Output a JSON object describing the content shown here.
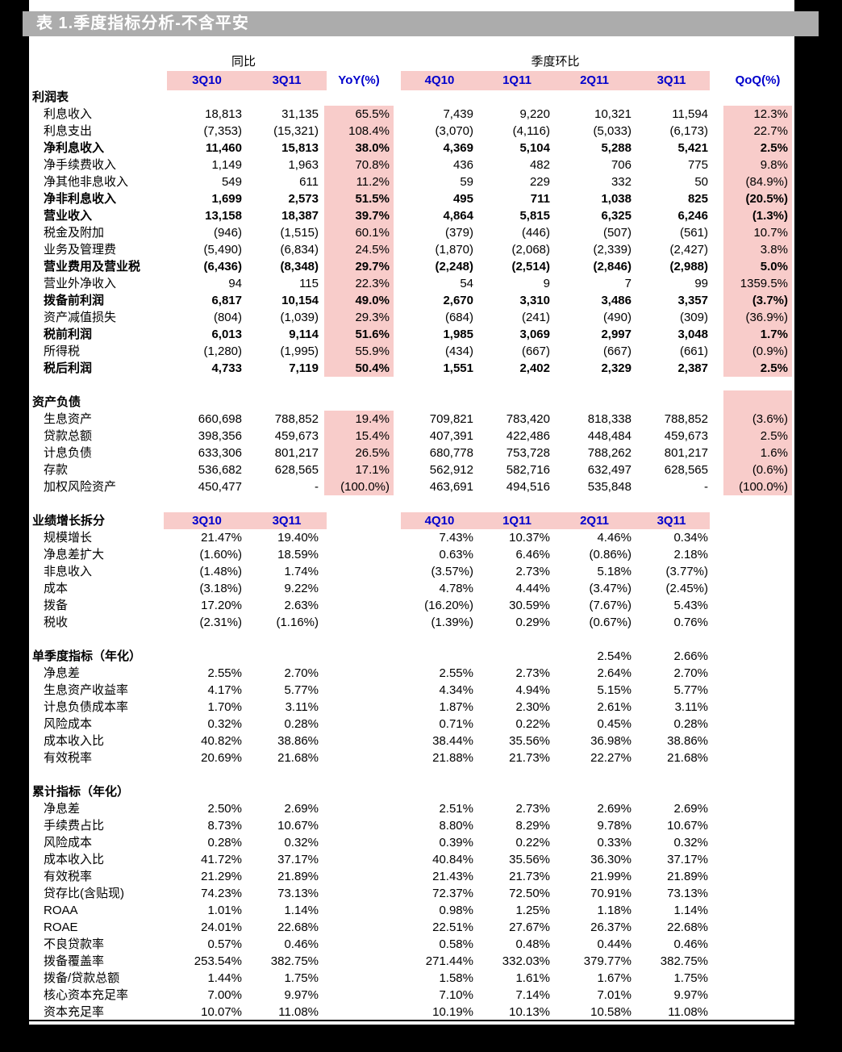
{
  "title": "表 1.季度指标分析-不含平安",
  "colors": {
    "highlight_pink": "#f8ccca",
    "header_blue": "#0000cc",
    "title_bar_gray": "#acacac",
    "page_white": "#ffffff",
    "background_black": "#000000"
  },
  "header": {
    "yoy_group_label": "同比",
    "qoq_group_label": "季度环比",
    "cols_yoy": [
      "3Q10",
      "3Q11"
    ],
    "yoy_label": "YoY(%)",
    "cols_qoq": [
      "4Q10",
      "1Q11",
      "2Q11",
      "3Q11"
    ],
    "qoq_label": "QoQ(%)"
  },
  "growth_header": {
    "cols_left": [
      "3Q10",
      "3Q11"
    ],
    "cols_right": [
      "4Q10",
      "1Q11",
      "2Q11",
      "3Q11"
    ]
  },
  "table": {
    "rows": [
      {
        "t": "section",
        "label": "利润表"
      },
      {
        "t": "item",
        "label": "利息收入",
        "v": [
          "18,813",
          "31,135",
          "65.5%",
          "7,439",
          "9,220",
          "10,321",
          "11,594",
          "12.3%"
        ]
      },
      {
        "t": "item",
        "label": "利息支出",
        "v": [
          "(7,353)",
          "(15,321)",
          "108.4%",
          "(3,070)",
          "(4,116)",
          "(5,033)",
          "(6,173)",
          "22.7%"
        ]
      },
      {
        "t": "item",
        "b": true,
        "label": "净利息收入",
        "v": [
          "11,460",
          "15,813",
          "38.0%",
          "4,369",
          "5,104",
          "5,288",
          "5,421",
          "2.5%"
        ]
      },
      {
        "t": "item",
        "label": "净手续费收入",
        "v": [
          "1,149",
          "1,963",
          "70.8%",
          "436",
          "482",
          "706",
          "775",
          "9.8%"
        ]
      },
      {
        "t": "item",
        "label": "净其他非息收入",
        "v": [
          "549",
          "611",
          "11.2%",
          "59",
          "229",
          "332",
          "50",
          "(84.9%)"
        ]
      },
      {
        "t": "item",
        "b": true,
        "label": "净非利息收入",
        "v": [
          "1,699",
          "2,573",
          "51.5%",
          "495",
          "711",
          "1,038",
          "825",
          "(20.5%)"
        ]
      },
      {
        "t": "item",
        "b": true,
        "label": "营业收入",
        "v": [
          "13,158",
          "18,387",
          "39.7%",
          "4,864",
          "5,815",
          "6,325",
          "6,246",
          "(1.3%)"
        ]
      },
      {
        "t": "item",
        "label": "税金及附加",
        "v": [
          "(946)",
          "(1,515)",
          "60.1%",
          "(379)",
          "(446)",
          "(507)",
          "(561)",
          "10.7%"
        ]
      },
      {
        "t": "item",
        "label": "业务及管理费",
        "v": [
          "(5,490)",
          "(6,834)",
          "24.5%",
          "(1,870)",
          "(2,068)",
          "(2,339)",
          "(2,427)",
          "3.8%"
        ]
      },
      {
        "t": "item",
        "b": true,
        "label": "营业费用及营业税",
        "v": [
          "(6,436)",
          "(8,348)",
          "29.7%",
          "(2,248)",
          "(2,514)",
          "(2,846)",
          "(2,988)",
          "5.0%"
        ]
      },
      {
        "t": "item",
        "label": "营业外净收入",
        "v": [
          "94",
          "115",
          "22.3%",
          "54",
          "9",
          "7",
          "99",
          "1359.5%"
        ]
      },
      {
        "t": "item",
        "b": true,
        "label": "拨备前利润",
        "v": [
          "6,817",
          "10,154",
          "49.0%",
          "2,670",
          "3,310",
          "3,486",
          "3,357",
          "(3.7%)"
        ]
      },
      {
        "t": "item",
        "label": "资产减值损失",
        "v": [
          "(804)",
          "(1,039)",
          "29.3%",
          "(684)",
          "(241)",
          "(490)",
          "(309)",
          "(36.9%)"
        ]
      },
      {
        "t": "item",
        "b": true,
        "label": "税前利润",
        "v": [
          "6,013",
          "9,114",
          "51.6%",
          "1,985",
          "3,069",
          "2,997",
          "3,048",
          "1.7%"
        ]
      },
      {
        "t": "item",
        "label": "所得税",
        "v": [
          "(1,280)",
          "(1,995)",
          "55.9%",
          "(434)",
          "(667)",
          "(667)",
          "(661)",
          "(0.9%)"
        ]
      },
      {
        "t": "item",
        "b": true,
        "label": "税后利润",
        "v": [
          "4,733",
          "7,119",
          "50.4%",
          "1,551",
          "2,402",
          "2,329",
          "2,387",
          "2.5%"
        ]
      },
      {
        "t": "blank"
      },
      {
        "t": "section",
        "label": "资产负债"
      },
      {
        "t": "item",
        "label": "生息资产",
        "v": [
          "660,698",
          "788,852",
          "19.4%",
          "709,821",
          "783,420",
          "818,338",
          "788,852",
          "(3.6%)"
        ]
      },
      {
        "t": "item",
        "label": "贷款总额",
        "v": [
          "398,356",
          "459,673",
          "15.4%",
          "407,391",
          "422,486",
          "448,484",
          "459,673",
          "2.5%"
        ]
      },
      {
        "t": "item",
        "label": "计息负债",
        "v": [
          "633,306",
          "801,217",
          "26.5%",
          "680,778",
          "753,728",
          "788,262",
          "801,217",
          "1.6%"
        ]
      },
      {
        "t": "item",
        "label": "存款",
        "v": [
          "536,682",
          "628,565",
          "17.1%",
          "562,912",
          "582,716",
          "632,497",
          "628,565",
          "(0.6%)"
        ]
      },
      {
        "t": "item",
        "label": "加权风险资产",
        "v": [
          "450,477",
          "-",
          "(100.0%)",
          "463,691",
          "494,516",
          "535,848",
          "-",
          "(100.0%)"
        ]
      },
      {
        "t": "blank"
      },
      {
        "t": "growth",
        "label": "业绩增长拆分"
      },
      {
        "t": "item",
        "label": "规模增长",
        "v": [
          "21.47%",
          "19.40%",
          "",
          "7.43%",
          "10.37%",
          "4.46%",
          "0.34%",
          ""
        ]
      },
      {
        "t": "item",
        "label": "净息差扩大",
        "v": [
          "(1.60%)",
          "18.59%",
          "",
          "0.63%",
          "6.46%",
          "(0.86%)",
          "2.18%",
          ""
        ]
      },
      {
        "t": "item",
        "label": "非息收入",
        "v": [
          "(1.48%)",
          "1.74%",
          "",
          "(3.57%)",
          "2.73%",
          "5.18%",
          "(3.77%)",
          ""
        ]
      },
      {
        "t": "item",
        "label": "成本",
        "v": [
          "(3.18%)",
          "9.22%",
          "",
          "4.78%",
          "4.44%",
          "(3.47%)",
          "(2.45%)",
          ""
        ]
      },
      {
        "t": "item",
        "label": "拨备",
        "v": [
          "17.20%",
          "2.63%",
          "",
          "(16.20%)",
          "30.59%",
          "(7.67%)",
          "5.43%",
          ""
        ]
      },
      {
        "t": "item",
        "label": "税收",
        "v": [
          "(2.31%)",
          "(1.16%)",
          "",
          "(1.39%)",
          "0.29%",
          "(0.67%)",
          "0.76%",
          ""
        ]
      },
      {
        "t": "blank"
      },
      {
        "t": "section",
        "label": "单季度指标（年化）",
        "v": [
          "",
          "",
          "",
          "",
          "",
          "2.54%",
          "2.66%",
          ""
        ]
      },
      {
        "t": "item",
        "label": "净息差",
        "v": [
          "2.55%",
          "2.70%",
          "",
          "2.55%",
          "2.73%",
          "2.64%",
          "2.70%",
          ""
        ]
      },
      {
        "t": "item",
        "label": "生息资产收益率",
        "v": [
          "4.17%",
          "5.77%",
          "",
          "4.34%",
          "4.94%",
          "5.15%",
          "5.77%",
          ""
        ]
      },
      {
        "t": "item",
        "label": "计息负债成本率",
        "v": [
          "1.70%",
          "3.11%",
          "",
          "1.87%",
          "2.30%",
          "2.61%",
          "3.11%",
          ""
        ]
      },
      {
        "t": "item",
        "label": "风险成本",
        "v": [
          "0.32%",
          "0.28%",
          "",
          "0.71%",
          "0.22%",
          "0.45%",
          "0.28%",
          ""
        ]
      },
      {
        "t": "item",
        "label": "成本收入比",
        "v": [
          "40.82%",
          "38.86%",
          "",
          "38.44%",
          "35.56%",
          "36.98%",
          "38.86%",
          ""
        ]
      },
      {
        "t": "item",
        "label": "有效税率",
        "v": [
          "20.69%",
          "21.68%",
          "",
          "21.88%",
          "21.73%",
          "22.27%",
          "21.68%",
          ""
        ]
      },
      {
        "t": "blank"
      },
      {
        "t": "section",
        "label": "累计指标（年化）"
      },
      {
        "t": "item",
        "label": "净息差",
        "v": [
          "2.50%",
          "2.69%",
          "",
          "2.51%",
          "2.73%",
          "2.69%",
          "2.69%",
          ""
        ]
      },
      {
        "t": "item",
        "label": "手续费占比",
        "v": [
          "8.73%",
          "10.67%",
          "",
          "8.80%",
          "8.29%",
          "9.78%",
          "10.67%",
          ""
        ]
      },
      {
        "t": "item",
        "label": "风险成本",
        "v": [
          "0.28%",
          "0.32%",
          "",
          "0.39%",
          "0.22%",
          "0.33%",
          "0.32%",
          ""
        ]
      },
      {
        "t": "item",
        "label": "成本收入比",
        "v": [
          "41.72%",
          "37.17%",
          "",
          "40.84%",
          "35.56%",
          "36.30%",
          "37.17%",
          ""
        ]
      },
      {
        "t": "item",
        "label": "有效税率",
        "v": [
          "21.29%",
          "21.89%",
          "",
          "21.43%",
          "21.73%",
          "21.99%",
          "21.89%",
          ""
        ]
      },
      {
        "t": "item",
        "label": "贷存比(含贴现)",
        "v": [
          "74.23%",
          "73.13%",
          "",
          "72.37%",
          "72.50%",
          "70.91%",
          "73.13%",
          ""
        ]
      },
      {
        "t": "item",
        "label": "ROAA",
        "v": [
          "1.01%",
          "1.14%",
          "",
          "0.98%",
          "1.25%",
          "1.18%",
          "1.14%",
          ""
        ]
      },
      {
        "t": "item",
        "label": "ROAE",
        "v": [
          "24.01%",
          "22.68%",
          "",
          "22.51%",
          "27.67%",
          "26.37%",
          "22.68%",
          ""
        ]
      },
      {
        "t": "item",
        "label": "不良贷款率",
        "v": [
          "0.57%",
          "0.46%",
          "",
          "0.58%",
          "0.48%",
          "0.44%",
          "0.46%",
          ""
        ]
      },
      {
        "t": "item",
        "label": "拨备覆盖率",
        "v": [
          "253.54%",
          "382.75%",
          "",
          "271.44%",
          "332.03%",
          "379.77%",
          "382.75%",
          ""
        ]
      },
      {
        "t": "item",
        "label": "拨备/贷款总额",
        "v": [
          "1.44%",
          "1.75%",
          "",
          "1.58%",
          "1.61%",
          "1.67%",
          "1.75%",
          ""
        ]
      },
      {
        "t": "item",
        "label": "核心资本充足率",
        "v": [
          "7.00%",
          "9.97%",
          "",
          "7.10%",
          "7.14%",
          "7.01%",
          "9.97%",
          ""
        ]
      },
      {
        "t": "item",
        "label": "资本充足率",
        "v": [
          "10.07%",
          "11.08%",
          "",
          "10.19%",
          "10.13%",
          "10.58%",
          "11.08%",
          ""
        ]
      }
    ]
  }
}
